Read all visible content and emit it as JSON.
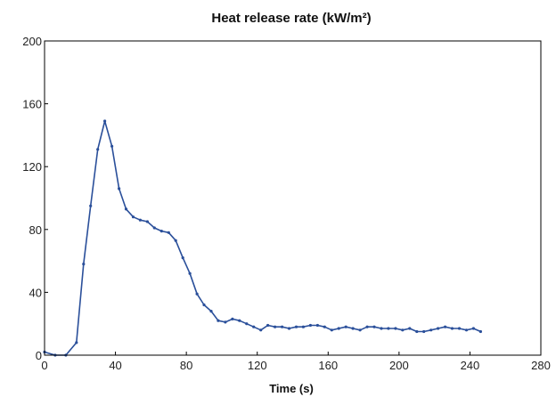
{
  "chart_data": {
    "type": "line",
    "title": "Heat release rate (kW/m²)",
    "xlabel": "Time (s)",
    "ylabel": "",
    "xlim": [
      0,
      280
    ],
    "ylim": [
      0,
      200
    ],
    "xticks": [
      0,
      40,
      80,
      120,
      160,
      200,
      240,
      280
    ],
    "yticks": [
      0,
      40,
      80,
      120,
      160,
      200
    ],
    "grid": false,
    "legend": "none",
    "colors": {
      "line": "#2a4f9a",
      "axes": "#000000"
    },
    "series": [
      {
        "x": [
          0,
          6,
          12,
          18,
          22,
          26,
          30,
          34,
          38,
          42,
          46,
          50,
          54,
          58,
          62,
          66,
          70,
          74,
          78,
          82,
          86,
          90,
          94,
          98,
          102,
          106,
          110,
          114,
          118,
          122,
          126,
          130,
          134,
          138,
          142,
          146,
          150,
          154,
          158,
          162,
          166,
          170,
          174,
          178,
          182,
          186,
          190,
          194,
          198,
          202,
          206,
          210,
          214,
          218,
          222,
          226,
          230,
          234,
          238,
          242,
          246
        ],
        "y": [
          2,
          0,
          0,
          8,
          58,
          95,
          131,
          149,
          133,
          106,
          93,
          88,
          86,
          85,
          81,
          79,
          78,
          73,
          62,
          52,
          39,
          32,
          28,
          22,
          21,
          23,
          22,
          20,
          18,
          16,
          19,
          18,
          18,
          17,
          18,
          18,
          19,
          19,
          18,
          16,
          17,
          18,
          17,
          16,
          18,
          18,
          17,
          17,
          17,
          16,
          17,
          15,
          15,
          16,
          17,
          18,
          17,
          17,
          16,
          17,
          15
        ]
      }
    ]
  }
}
